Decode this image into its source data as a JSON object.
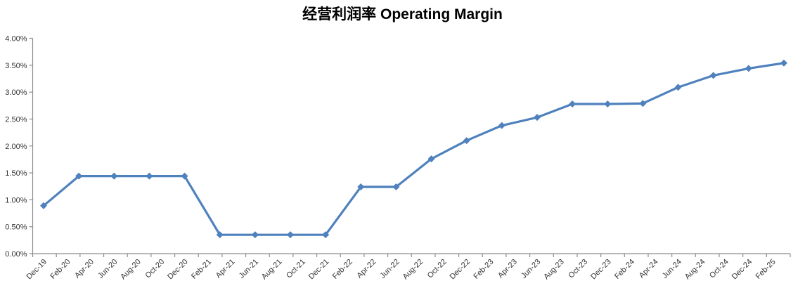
{
  "title": "经营利润率 Operating Margin",
  "chart_data": {
    "type": "line",
    "title": "经营利润率 Operating Margin",
    "xlabel": "",
    "ylabel": "",
    "unit": "%",
    "ylim": [
      0,
      4
    ],
    "grid": false,
    "legend_position": "none",
    "marker_shape": "diamond",
    "x_axis_tick_labels": [
      "Dec-19",
      "Feb-20",
      "Apr-20",
      "Jun-20",
      "Aug-20",
      "Oct-20",
      "Dec-20",
      "Feb-21",
      "Apr-21",
      "Jun-21",
      "Aug-21",
      "Oct-21",
      "Dec-21",
      "Feb-22",
      "Apr-22",
      "Jun-22",
      "Aug-22",
      "Oct-22",
      "Dec-22",
      "Feb-23",
      "Apr-23",
      "Jun-23",
      "Aug-23",
      "Oct-23",
      "Dec-23",
      "Feb-24",
      "Apr-24",
      "Jun-24",
      "Aug-24",
      "Oct-24",
      "Dec-24",
      "Feb-25"
    ],
    "y_axis_tick_labels": [
      "0.00%",
      "0.50%",
      "1.00%",
      "1.50%",
      "2.00%",
      "2.50%",
      "3.00%",
      "3.50%",
      "4.00%"
    ],
    "series": [
      {
        "name": "Operating Margin",
        "x": [
          "Dec-19",
          "Mar-20",
          "Jun-20",
          "Sep-20",
          "Dec-20",
          "Mar-21",
          "Jun-21",
          "Sep-21",
          "Dec-21",
          "Mar-22",
          "Jun-22",
          "Sep-22",
          "Dec-22",
          "Mar-23",
          "Jun-23",
          "Sep-23",
          "Dec-23",
          "Mar-24",
          "Jun-24",
          "Sep-24",
          "Dec-24",
          "Mar-25"
        ],
        "values": [
          0.89,
          1.44,
          1.44,
          1.44,
          1.44,
          0.35,
          0.35,
          0.35,
          0.35,
          1.24,
          1.24,
          1.76,
          2.1,
          2.38,
          2.53,
          2.78,
          2.78,
          2.79,
          3.09,
          3.31,
          3.44,
          3.54
        ]
      }
    ],
    "colors": {
      "line": "#4F81BD",
      "marker": "#4F81BD",
      "axis": "#8C8C8C",
      "tick_text": "#333333",
      "title_text": "#000000",
      "background": "#FFFFFF"
    }
  }
}
